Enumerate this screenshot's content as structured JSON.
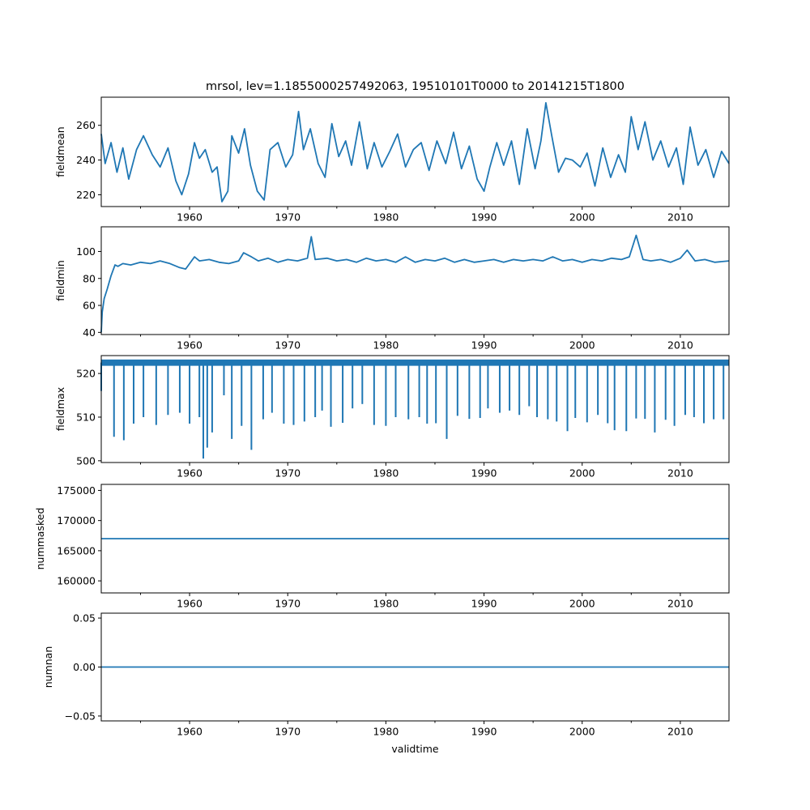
{
  "title": "mrsol, lev=1.1855000257492063, 19510101T0000 to 20141215T1800",
  "colors": {
    "line": "#1f77b4",
    "axes": "#000000",
    "background": "#ffffff"
  },
  "chart_data": [
    {
      "type": "line",
      "name": "fieldmean",
      "ylabel": "fieldmean",
      "xlabel": "",
      "xlim": [
        1951.0,
        2014.96
      ],
      "ylim": [
        213.2,
        276.2
      ],
      "yticks": [
        220,
        240,
        260
      ],
      "ytick_labels": [
        "220",
        "240",
        "260"
      ],
      "xticks": [
        1960,
        1970,
        1980,
        1990,
        2000,
        2010
      ],
      "xtick_labels": [
        "1960",
        "1970",
        "1980",
        "1990",
        "2000",
        "2010"
      ],
      "x": [
        1951.0,
        1951.4,
        1952.0,
        1952.6,
        1953.2,
        1953.8,
        1954.6,
        1955.3,
        1956.2,
        1957.0,
        1957.8,
        1958.6,
        1959.2,
        1959.9,
        1960.5,
        1961.0,
        1961.6,
        1962.3,
        1962.8,
        1963.3,
        1963.9,
        1964.3,
        1965.0,
        1965.6,
        1966.2,
        1966.9,
        1967.6,
        1968.2,
        1969.0,
        1969.8,
        1970.5,
        1971.1,
        1971.6,
        1972.3,
        1973.1,
        1973.8,
        1974.5,
        1975.2,
        1975.9,
        1976.5,
        1977.3,
        1978.1,
        1978.8,
        1979.6,
        1980.4,
        1981.2,
        1982.0,
        1982.8,
        1983.6,
        1984.4,
        1985.2,
        1986.1,
        1986.9,
        1987.7,
        1988.5,
        1989.3,
        1990.0,
        1990.6,
        1991.3,
        1992.0,
        1992.8,
        1993.6,
        1994.4,
        1995.2,
        1995.8,
        1996.3,
        1996.9,
        1997.6,
        1998.3,
        1999.0,
        1999.8,
        2000.5,
        2001.3,
        2002.1,
        2002.9,
        2003.7,
        2004.4,
        2005.0,
        2005.7,
        2006.4,
        2007.2,
        2008.0,
        2008.8,
        2009.6,
        2010.3,
        2011.0,
        2011.8,
        2012.6,
        2013.4,
        2014.2,
        2014.96
      ],
      "y": [
        255,
        238,
        250,
        233,
        247,
        229,
        246,
        254,
        243,
        236,
        247,
        228,
        220,
        232,
        250,
        241,
        246,
        233,
        236,
        216,
        222,
        254,
        244,
        258,
        237,
        222,
        217,
        246,
        250,
        236,
        243,
        268,
        246,
        258,
        238,
        230,
        261,
        242,
        251,
        237,
        262,
        235,
        250,
        236,
        245,
        255,
        236,
        246,
        250,
        234,
        251,
        238,
        256,
        235,
        248,
        229,
        222,
        236,
        250,
        237,
        251,
        226,
        258,
        235,
        251,
        273,
        254,
        233,
        241,
        240,
        236,
        244,
        225,
        247,
        230,
        243,
        233,
        265,
        246,
        262,
        240,
        251,
        236,
        247,
        226,
        259,
        237,
        246,
        230,
        245,
        238
      ]
    },
    {
      "type": "line",
      "name": "fieldmin",
      "ylabel": "fieldmin",
      "xlabel": "",
      "xlim": [
        1951.0,
        2014.96
      ],
      "ylim": [
        38.4,
        118.3
      ],
      "yticks": [
        40,
        60,
        80,
        100
      ],
      "ytick_labels": [
        "40",
        "60",
        "80",
        "100"
      ],
      "xticks": [
        1960,
        1970,
        1980,
        1990,
        2000,
        2010
      ],
      "xtick_labels": [
        "1960",
        "1970",
        "1980",
        "1990",
        "2000",
        "2010"
      ],
      "x": [
        1951.0,
        1951.1,
        1951.3,
        1951.6,
        1952.0,
        1952.4,
        1952.7,
        1953.2,
        1954.0,
        1955.0,
        1956.0,
        1957.0,
        1958.0,
        1959.0,
        1959.6,
        1960.0,
        1960.5,
        1961.0,
        1962.0,
        1963.0,
        1964.0,
        1965.0,
        1965.5,
        1966.3,
        1967.0,
        1968.0,
        1969.0,
        1970.0,
        1971.0,
        1972.0,
        1972.4,
        1972.8,
        1974.0,
        1975.0,
        1976.0,
        1977.0,
        1978.0,
        1979.0,
        1980.0,
        1981.0,
        1982.0,
        1983.0,
        1984.0,
        1985.0,
        1986.0,
        1987.0,
        1988.0,
        1989.0,
        1990.0,
        1991.0,
        1992.0,
        1993.0,
        1994.0,
        1995.0,
        1996.0,
        1997.0,
        1998.0,
        1999.0,
        2000.0,
        2001.0,
        2002.0,
        2003.0,
        2004.0,
        2004.8,
        2005.5,
        2006.2,
        2007.0,
        2008.0,
        2009.0,
        2010.0,
        2010.7,
        2011.5,
        2012.5,
        2013.5,
        2014.96
      ],
      "y": [
        40,
        55,
        65,
        72,
        82,
        90,
        89,
        91,
        90,
        92,
        91,
        93,
        91,
        88,
        87,
        91,
        96,
        93,
        94,
        92,
        91,
        93,
        99,
        96,
        93,
        95,
        92,
        94,
        93,
        95,
        111,
        94,
        95,
        93,
        94,
        92,
        95,
        93,
        94,
        92,
        96,
        92,
        94,
        93,
        95,
        92,
        94,
        92,
        93,
        94,
        92,
        94,
        93,
        94,
        93,
        96,
        93,
        94,
        92,
        94,
        93,
        95,
        94,
        96,
        112,
        94,
        93,
        94,
        92,
        95,
        101,
        93,
        94,
        92,
        93
      ]
    },
    {
      "type": "line",
      "name": "fieldmax",
      "ylabel": "fieldmax",
      "xlabel": "",
      "xlim": [
        1951.0,
        2014.96
      ],
      "ylim": [
        499.6,
        524.1
      ],
      "yticks": [
        500,
        510,
        520
      ],
      "ytick_labels": [
        "500",
        "510",
        "520"
      ],
      "xticks": [
        1960,
        1970,
        1980,
        1990,
        2000,
        2010
      ],
      "xtick_labels": [
        "1960",
        "1970",
        "1980",
        "1990",
        "2000",
        "2010"
      ],
      "x": [
        1951.0,
        1952.3,
        1953.3,
        1954.3,
        1955.3,
        1956.6,
        1957.8,
        1959.0,
        1960.0,
        1961.0,
        1961.4,
        1961.8,
        1962.3,
        1963.5,
        1964.3,
        1965.3,
        1966.3,
        1967.5,
        1968.4,
        1969.6,
        1970.6,
        1971.7,
        1972.8,
        1973.5,
        1974.4,
        1975.6,
        1976.6,
        1977.6,
        1978.8,
        1980.0,
        1981.0,
        1982.3,
        1983.4,
        1984.2,
        1985.1,
        1986.2,
        1987.3,
        1988.5,
        1989.6,
        1990.4,
        1991.6,
        1992.6,
        1993.6,
        1994.6,
        1995.4,
        1996.5,
        1997.4,
        1998.5,
        1999.3,
        2000.5,
        2001.6,
        2002.6,
        2003.3,
        2004.5,
        2005.5,
        2006.4,
        2007.4,
        2008.5,
        2009.4,
        2010.5,
        2011.4,
        2012.4,
        2013.4,
        2014.4
      ],
      "y": [
        516,
        505.5,
        504.7,
        508.5,
        510,
        508.2,
        510.5,
        511,
        508.5,
        510,
        500.5,
        503,
        506.5,
        515,
        505,
        508,
        502.5,
        509.5,
        511,
        508.5,
        508.2,
        509,
        510,
        511.5,
        507.8,
        508.7,
        512,
        513,
        508.2,
        508,
        510,
        509.5,
        510,
        508.5,
        508.6,
        505,
        510.3,
        509.6,
        509.8,
        512,
        511,
        511.5,
        510.5,
        512.5,
        510,
        509.5,
        509,
        506.8,
        509.8,
        508.8,
        510.5,
        508.6,
        507,
        506.8,
        509.7,
        509.6,
        506.5,
        509.4,
        508,
        510.5,
        510,
        508.6,
        509.5,
        509.5
      ]
    },
    {
      "type": "line",
      "name": "nummasked",
      "ylabel": "nummasked",
      "xlabel": "",
      "xlim": [
        1951.0,
        2014.96
      ],
      "ylim": [
        158000,
        176000
      ],
      "yticks": [
        160000,
        165000,
        170000,
        175000
      ],
      "ytick_labels": [
        "160000",
        "165000",
        "170000",
        "175000"
      ],
      "xticks": [
        1960,
        1970,
        1980,
        1990,
        2000,
        2010
      ],
      "xtick_labels": [
        "1960",
        "1970",
        "1980",
        "1990",
        "2000",
        "2010"
      ],
      "x": [
        1951.0,
        2014.96
      ],
      "y": [
        167000,
        167000
      ]
    },
    {
      "type": "line",
      "name": "numnan",
      "ylabel": "numnan",
      "xlabel": "validtime",
      "xlim": [
        1951.0,
        2014.96
      ],
      "ylim": [
        -0.055,
        0.055
      ],
      "yticks": [
        -0.05,
        0.0,
        0.05
      ],
      "ytick_labels": [
        "−0.05",
        "0.00",
        "0.05"
      ],
      "xticks": [
        1960,
        1970,
        1980,
        1990,
        2000,
        2010
      ],
      "xtick_labels": [
        "1960",
        "1970",
        "1980",
        "1990",
        "2000",
        "2010"
      ],
      "x": [
        1951.0,
        2014.96
      ],
      "y": [
        0,
        0
      ]
    }
  ]
}
